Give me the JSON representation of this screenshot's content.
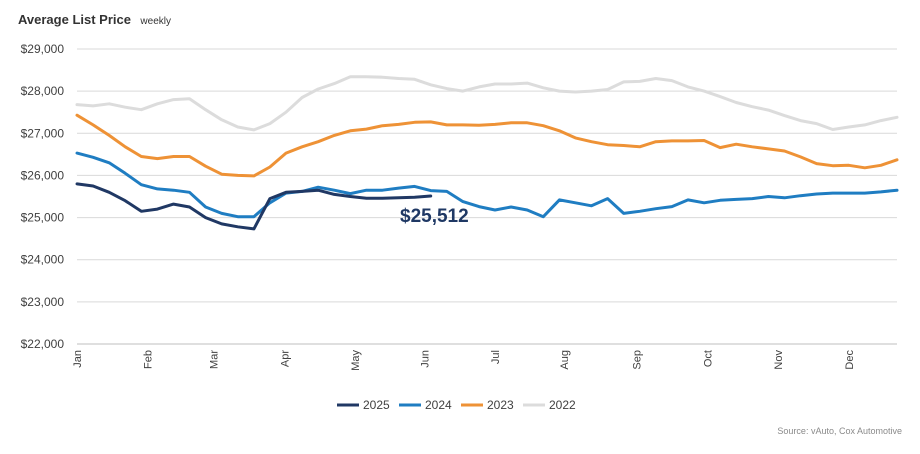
{
  "chart_data": {
    "type": "line",
    "title": "Average List Price",
    "subtitle": "weekly",
    "ylim": [
      22000,
      29000
    ],
    "yticks": [
      "$29,000",
      "$28,000",
      "$27,000",
      "$26,000",
      "$25,000",
      "$24,000",
      "$23,000",
      "$22,000"
    ],
    "ytick_values": [
      29000,
      28000,
      27000,
      26000,
      25000,
      24000,
      23000,
      22000
    ],
    "x_unit": "week of year",
    "xlim": [
      1,
      52
    ],
    "xticks": [
      {
        "label": "Jan",
        "week": 1
      },
      {
        "label": "Feb",
        "week": 5.4
      },
      {
        "label": "Mar",
        "week": 9.5
      },
      {
        "label": "Apr",
        "week": 13.9
      },
      {
        "label": "May",
        "week": 18.3
      },
      {
        "label": "Jun",
        "week": 22.6
      },
      {
        "label": "Jul",
        "week": 27.0
      },
      {
        "label": "Aug",
        "week": 31.3
      },
      {
        "label": "Sep",
        "week": 35.8
      },
      {
        "label": "Oct",
        "week": 40.2
      },
      {
        "label": "Nov",
        "week": 44.6
      },
      {
        "label": "Dec",
        "week": 49.0
      }
    ],
    "grid": true,
    "legend_position": "bottom-center",
    "callout": {
      "text": "$25,512",
      "series": "2025"
    },
    "series": [
      {
        "name": "2025",
        "color": "#203864",
        "values": [
          25800,
          25750,
          25600,
          25400,
          25150,
          25200,
          25320,
          25250,
          25000,
          24850,
          24780,
          24730,
          25450,
          25600,
          25620,
          25650,
          25550,
          25500,
          25460,
          25460,
          25470,
          25480,
          25512
        ]
      },
      {
        "name": "2024",
        "color": "#1f7dc2",
        "values": [
          26530,
          26430,
          26300,
          26050,
          25780,
          25680,
          25650,
          25600,
          25250,
          25100,
          25020,
          25020,
          25350,
          25580,
          25620,
          25720,
          25650,
          25570,
          25650,
          25650,
          25700,
          25740,
          25640,
          25620,
          25380,
          25260,
          25180,
          25250,
          25180,
          25020,
          25420,
          25350,
          25280,
          25450,
          25100,
          25150,
          25210,
          25260,
          25420,
          25350,
          25410,
          25430,
          25450,
          25500,
          25470,
          25520,
          25560,
          25580,
          25580,
          25580,
          25610,
          25650
        ]
      },
      {
        "name": "2023",
        "color": "#ee9236",
        "values": [
          27430,
          27200,
          26950,
          26680,
          26450,
          26400,
          26450,
          26450,
          26220,
          26030,
          26000,
          25990,
          26200,
          26530,
          26680,
          26800,
          26950,
          27060,
          27100,
          27180,
          27210,
          27260,
          27270,
          27200,
          27200,
          27190,
          27210,
          27250,
          27250,
          27180,
          27060,
          26890,
          26800,
          26730,
          26710,
          26680,
          26800,
          26820,
          26820,
          26830,
          26660,
          26740,
          26680,
          26630,
          26580,
          26440,
          26280,
          26230,
          26240,
          26180,
          26240,
          26370
        ]
      },
      {
        "name": "2022",
        "color": "#dcdcdc",
        "values": [
          27680,
          27650,
          27700,
          27620,
          27560,
          27700,
          27800,
          27820,
          27560,
          27320,
          27150,
          27080,
          27230,
          27500,
          27850,
          28050,
          28180,
          28340,
          28340,
          28330,
          28300,
          28280,
          28150,
          28060,
          28000,
          28100,
          28170,
          28170,
          28190,
          28080,
          28000,
          27980,
          28000,
          28040,
          28220,
          28230,
          28300,
          28250,
          28100,
          28000,
          27870,
          27730,
          27630,
          27550,
          27420,
          27300,
          27230,
          27090,
          27150,
          27200,
          27300,
          27380
        ]
      }
    ]
  },
  "source": "Source: vAuto, Cox Automotive"
}
